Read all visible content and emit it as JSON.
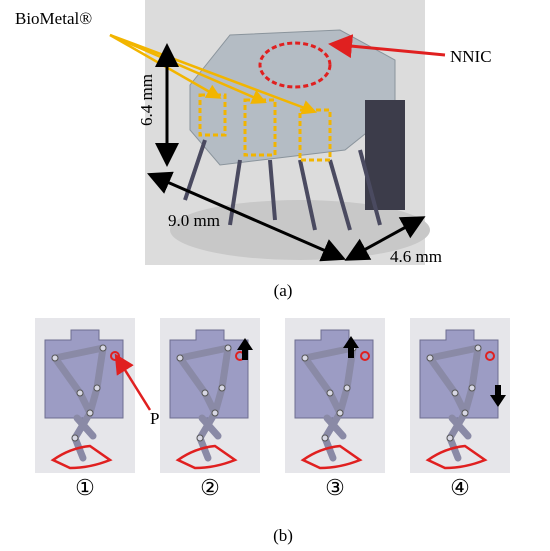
{
  "figure_a": {
    "labels": {
      "actuator": "BioMetal®",
      "chip": "NNIC",
      "height": "6.4 mm",
      "length": "9.0 mm",
      "width": "4.6 mm"
    },
    "caption": "(a)"
  },
  "figure_b": {
    "point_label": "P",
    "panels": [
      {
        "label": "①"
      },
      {
        "label": "②"
      },
      {
        "label": "③"
      },
      {
        "label": "④"
      }
    ],
    "caption": "(b)"
  }
}
